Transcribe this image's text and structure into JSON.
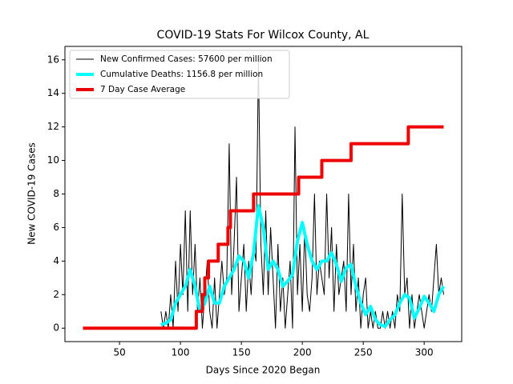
{
  "chart_data": {
    "type": "line",
    "title": "COVID-19 Stats For Wilcox County, AL",
    "x_label": "Days Since 2020 Began",
    "y_label": "New COVID-19 Cases",
    "xlim": [
      5.2,
      330.8
    ],
    "ylim": [
      -0.8,
      16.8
    ],
    "xticks": [
      50,
      100,
      150,
      200,
      250,
      300
    ],
    "yticks": [
      0,
      2,
      4,
      6,
      8,
      10,
      12,
      14,
      16
    ],
    "legend": "upper left",
    "series": [
      {
        "name": "New Confirmed Cases: 57600 per million",
        "color": "#000000",
        "x": [
          84,
          86,
          88,
          90,
          92,
          94,
          96,
          98,
          100,
          102,
          104,
          106,
          108,
          110,
          112,
          114,
          116,
          118,
          120,
          122,
          124,
          126,
          128,
          130,
          132,
          134,
          136,
          138,
          140,
          142,
          144,
          146,
          148,
          150,
          152,
          154,
          156,
          158,
          160,
          162,
          164,
          166,
          168,
          170,
          172,
          174,
          176,
          178,
          180,
          182,
          184,
          186,
          188,
          190,
          192,
          194,
          196,
          198,
          200,
          202,
          204,
          206,
          208,
          210,
          212,
          214,
          216,
          218,
          220,
          222,
          224,
          226,
          228,
          230,
          232,
          234,
          236,
          238,
          240,
          242,
          244,
          246,
          248,
          250,
          252,
          254,
          256,
          258,
          260,
          262,
          264,
          266,
          268,
          270,
          272,
          274,
          276,
          278,
          280,
          282,
          284,
          286,
          288,
          290,
          292,
          294,
          296,
          298,
          300,
          302,
          304,
          306,
          308,
          310,
          312,
          314,
          316
        ],
        "values": [
          1,
          0,
          1,
          0,
          2,
          0,
          4,
          1,
          5,
          2,
          7,
          1,
          7,
          2,
          5,
          1,
          3,
          0,
          2,
          4,
          1,
          0,
          3,
          0,
          2,
          4,
          2,
          3,
          11,
          2,
          5,
          9,
          1,
          3,
          5,
          1,
          4,
          2,
          5,
          4,
          16,
          5,
          2,
          7,
          2,
          6,
          3,
          0,
          5,
          1,
          3,
          0,
          2,
          4,
          0,
          12,
          2,
          5,
          1,
          6,
          2,
          1,
          3,
          8,
          2,
          4,
          3,
          2,
          8,
          3,
          6,
          1,
          5,
          2,
          3,
          4,
          1,
          8,
          2,
          5,
          1,
          3,
          0,
          2,
          3,
          0,
          1,
          0,
          1,
          0,
          0,
          1,
          0,
          1,
          0,
          1,
          0,
          2,
          1,
          8,
          2,
          3,
          0,
          2,
          0,
          1,
          2,
          1,
          0,
          1,
          2,
          1,
          3,
          5,
          2,
          3,
          2
        ]
      },
      {
        "name": "Cumulative Deaths: 1156.8 per million",
        "color": "#00ffff",
        "x": [
          84,
          88,
          92,
          96,
          100,
          104,
          108,
          112,
          116,
          120,
          124,
          128,
          132,
          136,
          140,
          144,
          148,
          152,
          156,
          160,
          164,
          168,
          172,
          176,
          180,
          184,
          188,
          192,
          196,
          200,
          204,
          208,
          212,
          216,
          220,
          224,
          228,
          232,
          236,
          240,
          244,
          248,
          252,
          256,
          260,
          264,
          268,
          272,
          276,
          280,
          284,
          288,
          292,
          296,
          300,
          304,
          308,
          312,
          316
        ],
        "values": [
          0.2,
          0.3,
          0.5,
          1.5,
          2,
          2.5,
          3.5,
          2.5,
          1,
          1.5,
          2.5,
          1.5,
          1.5,
          2.5,
          3,
          3.5,
          4.3,
          4,
          3,
          4.5,
          7.3,
          6,
          3.5,
          4,
          3.5,
          2.5,
          2.8,
          3.2,
          5.2,
          6.3,
          5,
          4,
          3.5,
          4,
          4,
          4.5,
          3.8,
          2.8,
          3.6,
          3.8,
          2.5,
          1.5,
          0.8,
          1.3,
          0.5,
          0.2,
          0.1,
          0.5,
          0.8,
          1.5,
          2,
          1.8,
          0.6,
          1.2,
          1.9,
          1.5,
          1,
          2,
          2.5
        ]
      },
      {
        "name": "7 Day Case Average",
        "color": "#ee0000",
        "x": [
          20,
          113,
          113,
          118,
          118,
          120,
          120,
          123,
          123,
          131,
          131,
          139,
          139,
          141,
          141,
          160,
          160,
          197,
          197,
          216,
          216,
          240,
          240,
          287,
          287,
          316
        ],
        "values": [
          0,
          0,
          1,
          1,
          2,
          2,
          3,
          3,
          4,
          4,
          5,
          5,
          6,
          6,
          7,
          7,
          8,
          8,
          9,
          9,
          10,
          10,
          11,
          11,
          12,
          12
        ]
      }
    ]
  }
}
